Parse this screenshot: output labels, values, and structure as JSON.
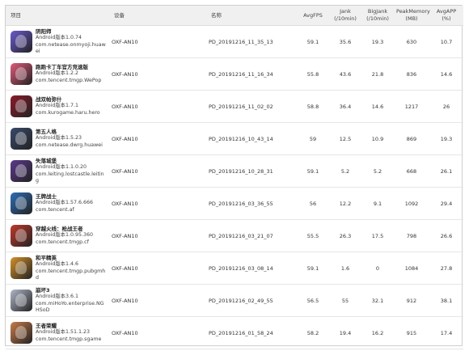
{
  "headers": {
    "game": "项目",
    "device": "设备",
    "name": "名称",
    "avgfps": [
      "AvgFPS"
    ],
    "jank": [
      "Jank",
      "(/10min)"
    ],
    "bigjank": [
      "BigJank",
      "(/10min)"
    ],
    "peakmem": [
      "PeakMemory",
      "(MB)"
    ],
    "avgapp": [
      "AvgAPP",
      "(%)"
    ]
  },
  "rows": [
    {
      "title": "阴阳师",
      "lines": [
        "Android版本1.0.74",
        "com.netease.onmyoji.huawei"
      ],
      "device": "OXF-AN10",
      "name": "PD_20191216_11_35_13",
      "avgfps": "59.1",
      "jank": "35.6",
      "bigjank": "19.3",
      "peakmem": "630",
      "avgapp": "10.7",
      "icon_color": "#6a5acd"
    },
    {
      "title": "跑跑卡丁车官方竞速版",
      "lines": [
        "Android版本1.2.2",
        "com.tencent.tmgp.WePop"
      ],
      "device": "OXF-AN10",
      "name": "PD_20191216_11_16_34",
      "avgfps": "55.8",
      "jank": "43.6",
      "bigjank": "21.8",
      "peakmem": "836",
      "avgapp": "14.6",
      "icon_color": "#e05a7a"
    },
    {
      "title": "战双帕弥什",
      "lines": [
        "Android版本1.7.1",
        "com.kurogame.haru.hero"
      ],
      "device": "OXF-AN10",
      "name": "PD_20191216_11_02_02",
      "avgfps": "58.8",
      "jank": "36.4",
      "bigjank": "14.6",
      "peakmem": "1217",
      "avgapp": "26",
      "icon_color": "#8b1a2b"
    },
    {
      "title": "第五人格",
      "lines": [
        "Android版本1.5.23",
        "com.netease.dwrg.huawei"
      ],
      "device": "OXF-AN10",
      "name": "PD_20191216_10_43_14",
      "avgfps": "59",
      "jank": "12.5",
      "bigjank": "10.9",
      "peakmem": "869",
      "avgapp": "19.3",
      "icon_color": "#3a4a6b"
    },
    {
      "title": "失落城堡",
      "lines": [
        "Android版本1.1.0.20",
        "com.leiting.lostcastle.leiting"
      ],
      "device": "OXF-AN10",
      "name": "PD_20191216_10_28_31",
      "avgfps": "59.1",
      "jank": "5.2",
      "bigjank": "5.2",
      "peakmem": "668",
      "avgapp": "26.1",
      "icon_color": "#5b3a8c"
    },
    {
      "title": "王牌战士",
      "lines": [
        "Android版本1.57.6.666",
        "com.tencent.af"
      ],
      "device": "OXF-AN10",
      "name": "PD_20191216_03_36_55",
      "avgfps": "56",
      "jank": "12.2",
      "bigjank": "9.1",
      "peakmem": "1092",
      "avgapp": "29.4",
      "icon_color": "#2f6db5"
    },
    {
      "title": "穿越火线：枪战王者",
      "lines": [
        "Android版本1.0.95.360",
        "com.tencent.tmgp.cf"
      ],
      "device": "OXF-AN10",
      "name": "PD_20191216_03_21_07",
      "avgfps": "55.5",
      "jank": "26.3",
      "bigjank": "17.5",
      "peakmem": "798",
      "avgapp": "26.6",
      "icon_color": "#c0392b"
    },
    {
      "title": "和平精英",
      "lines": [
        "Android版本1.4.6",
        "com.tencent.tmgp.pubgmhd"
      ],
      "device": "OXF-AN10",
      "name": "PD_20191216_03_08_14",
      "avgfps": "59.1",
      "jank": "1.6",
      "bigjank": "0",
      "peakmem": "1084",
      "avgapp": "27.8",
      "icon_color": "#d4902a"
    },
    {
      "title": "崩坏3",
      "lines": [
        "Android版本3.6.1",
        "com.miHoYo.enterprise.NGHSoD"
      ],
      "device": "OXF-AN10",
      "name": "PD_20191216_02_49_55",
      "avgfps": "56.5",
      "jank": "55",
      "bigjank": "32.1",
      "peakmem": "912",
      "avgapp": "38.1",
      "icon_color": "#b0b6c8"
    },
    {
      "title": "王者荣耀",
      "lines": [
        "Android版本1.51.1.23",
        "com.tencent.tmgp.sgame"
      ],
      "device": "OXF-AN10",
      "name": "PD_20191216_01_58_24",
      "avgfps": "58.2",
      "jank": "19.4",
      "bigjank": "16.2",
      "peakmem": "915",
      "avgapp": "17.4",
      "icon_color": "#c77b4a"
    }
  ]
}
